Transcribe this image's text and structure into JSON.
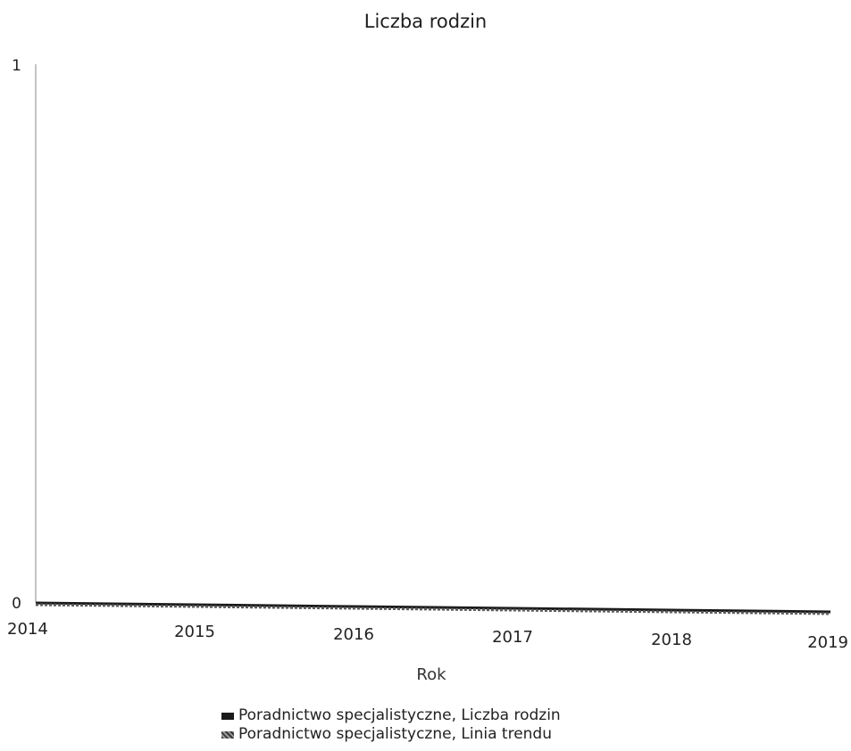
{
  "chart_data": {
    "type": "line",
    "title": "Liczba rodzin",
    "xlabel": "Rok",
    "ylabel": "",
    "x": [
      2014,
      2015,
      2016,
      2017,
      2018,
      2019
    ],
    "x_tick_labels": [
      "2014",
      "2015",
      "2016",
      "2017",
      "2018",
      "2019"
    ],
    "y_tick_labels": [
      "0",
      "1"
    ],
    "xlim": [
      2014,
      2019
    ],
    "ylim": [
      0,
      1
    ],
    "grid": false,
    "legend_position": "bottom",
    "series": [
      {
        "name": "Poradnictwo specjalistyczne, Liczba rodzin",
        "values": [
          0,
          0,
          0,
          0,
          0,
          0
        ],
        "color": "#1a1a1a"
      },
      {
        "name": "Poradnictwo specjalistyczne, Linia trendu",
        "values": [
          0,
          0,
          0,
          0,
          0,
          0
        ],
        "color": "#5a5a5a"
      }
    ]
  }
}
